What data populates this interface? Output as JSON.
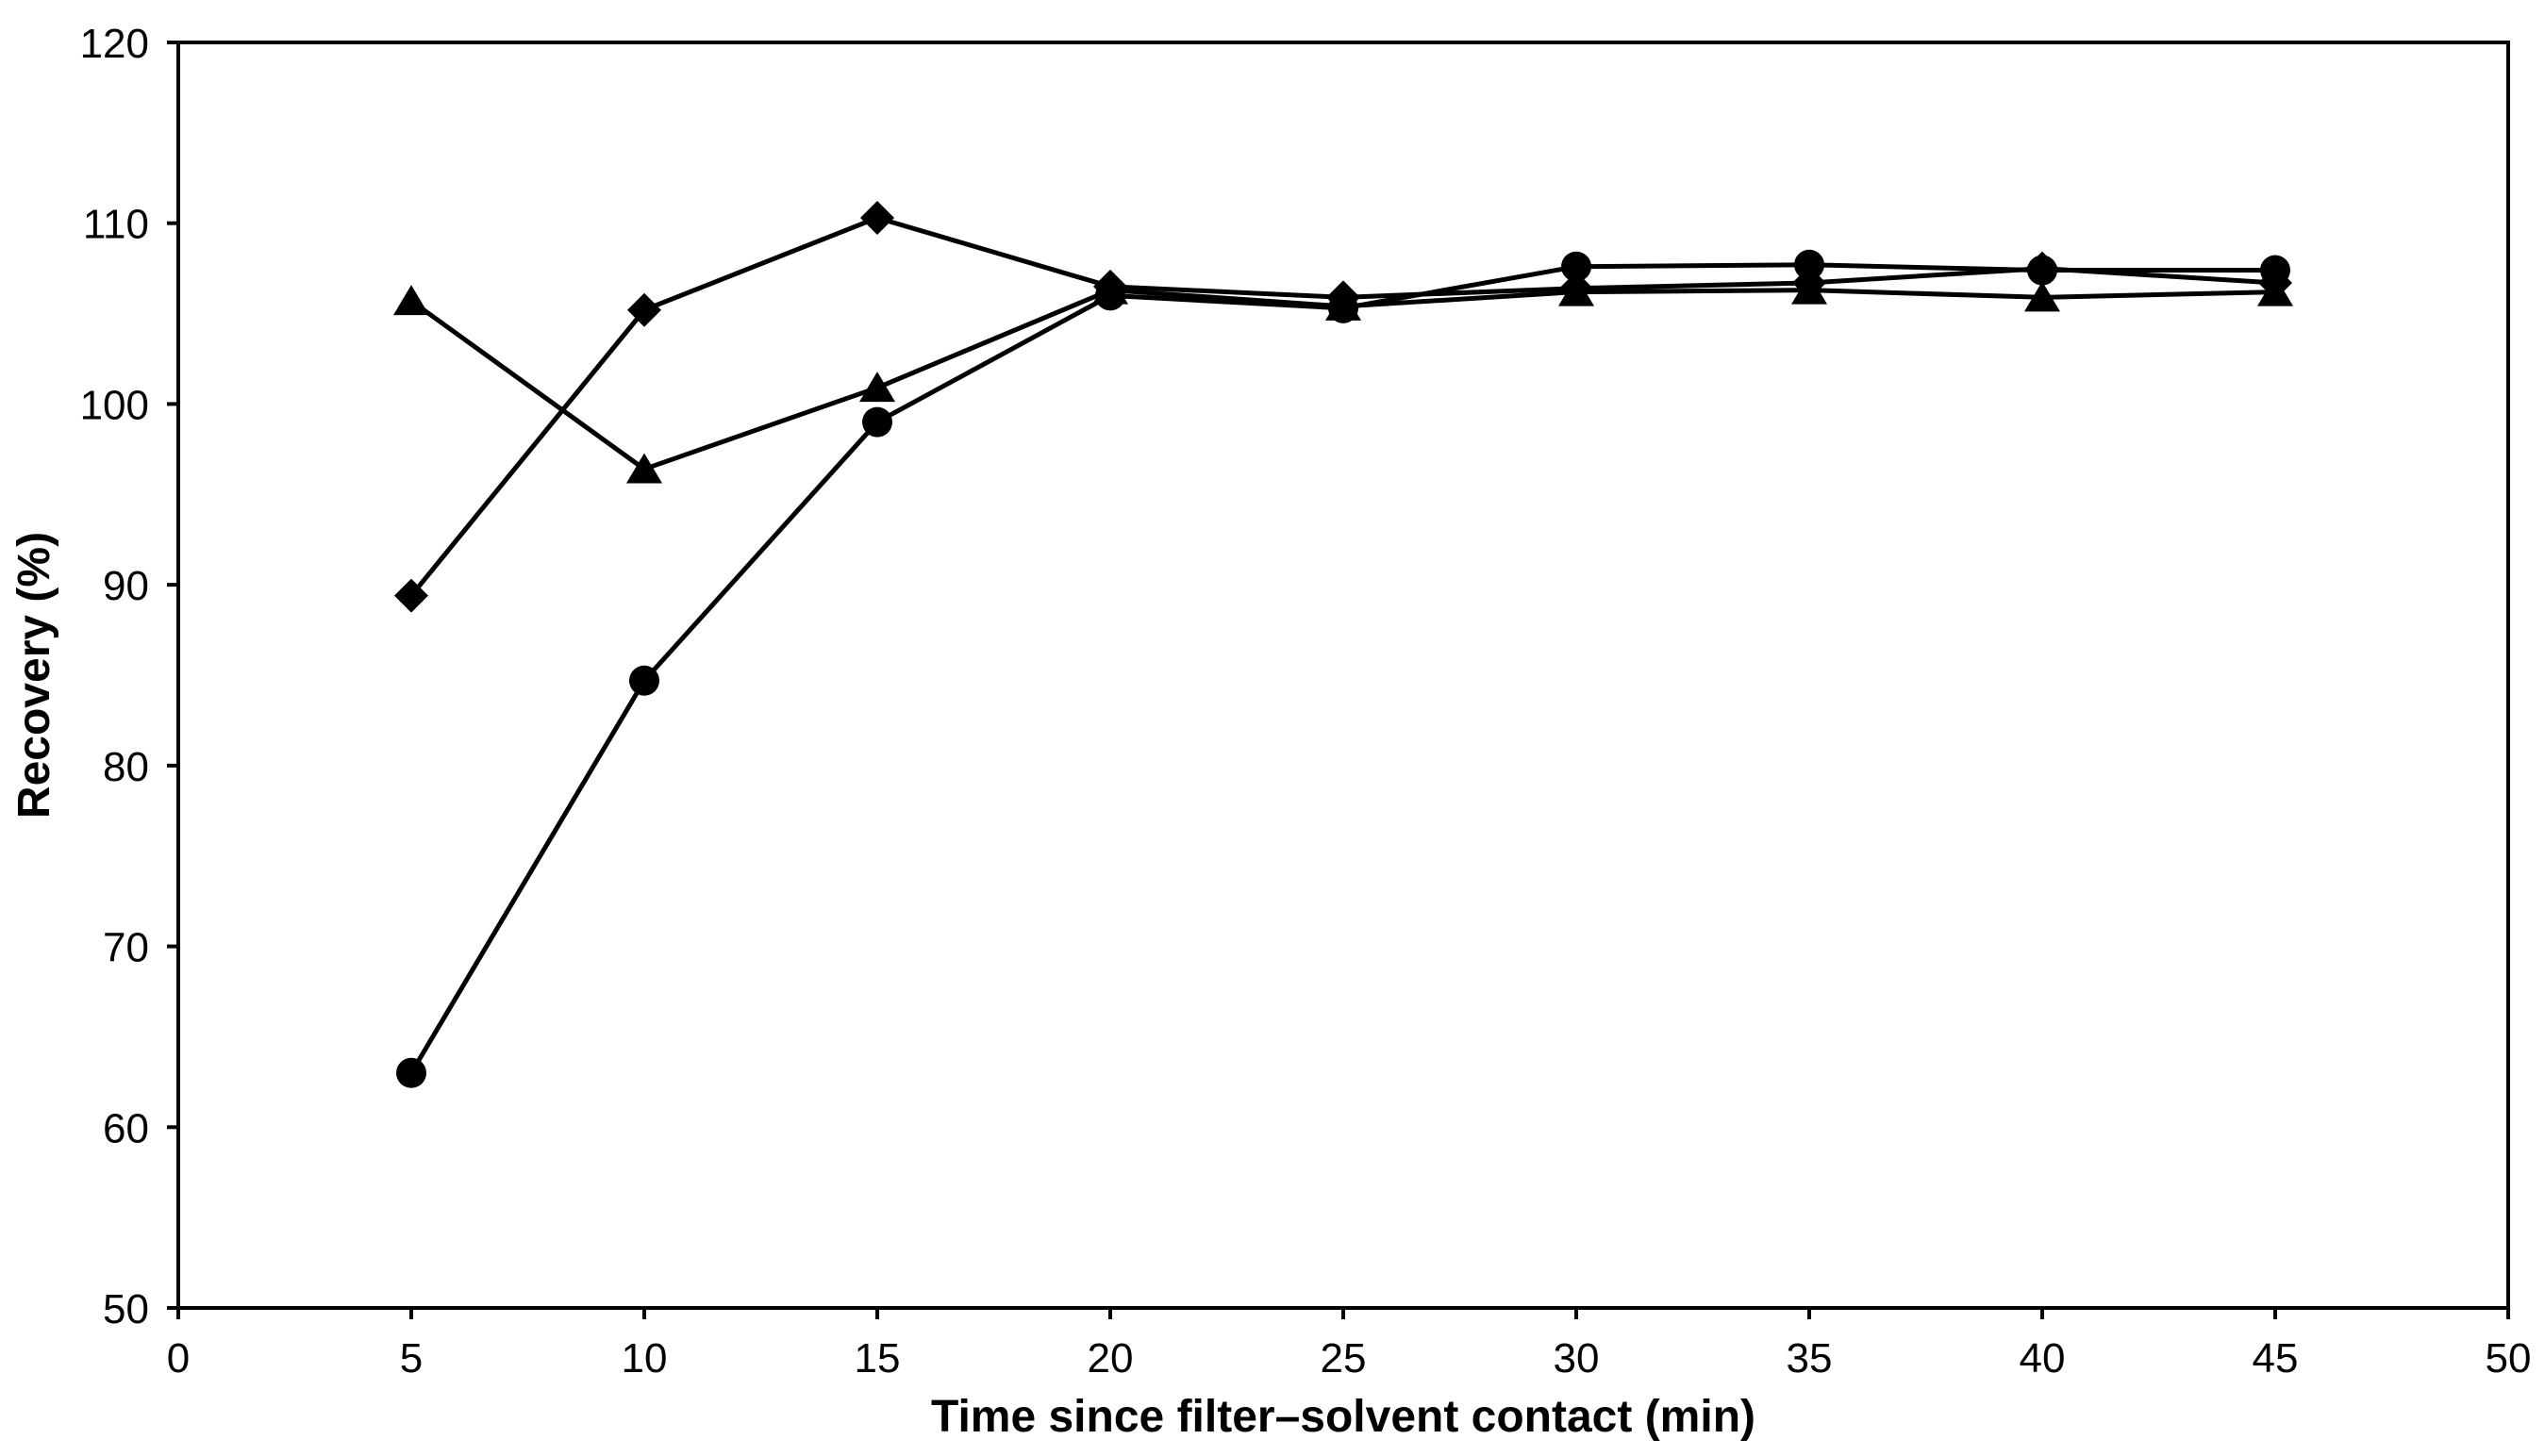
{
  "chart_data": {
    "type": "line",
    "title": "",
    "xlabel": "Time since filter–solvent contact (min)",
    "ylabel": "Recovery (%)",
    "xlim": [
      0,
      50
    ],
    "ylim": [
      50,
      120
    ],
    "xticks": [
      0,
      5,
      10,
      15,
      20,
      25,
      30,
      35,
      40,
      45,
      50
    ],
    "yticks": [
      50,
      60,
      70,
      80,
      90,
      100,
      110,
      120
    ],
    "grid": false,
    "legend": "none",
    "background": "#FFFFFF",
    "frame_color": "#000000",
    "line_color": "#000000",
    "x": [
      5,
      10,
      15,
      20,
      25,
      30,
      35,
      40,
      45
    ],
    "series": [
      {
        "name": "diamond-series",
        "marker": "diamond",
        "color": "#000000",
        "values": [
          89.4,
          105.2,
          110.3,
          106.5,
          105.9,
          106.4,
          106.7,
          107.5,
          106.7
        ]
      },
      {
        "name": "triangle-series",
        "marker": "triangle",
        "color": "#000000",
        "values": [
          105.7,
          96.4,
          100.9,
          106.3,
          105.4,
          106.2,
          106.3,
          105.9,
          106.2
        ]
      },
      {
        "name": "circle-series",
        "marker": "circle",
        "color": "#000000",
        "values": [
          63.0,
          84.7,
          99.0,
          106.0,
          105.3,
          107.6,
          107.7,
          107.4,
          107.4
        ]
      }
    ]
  }
}
